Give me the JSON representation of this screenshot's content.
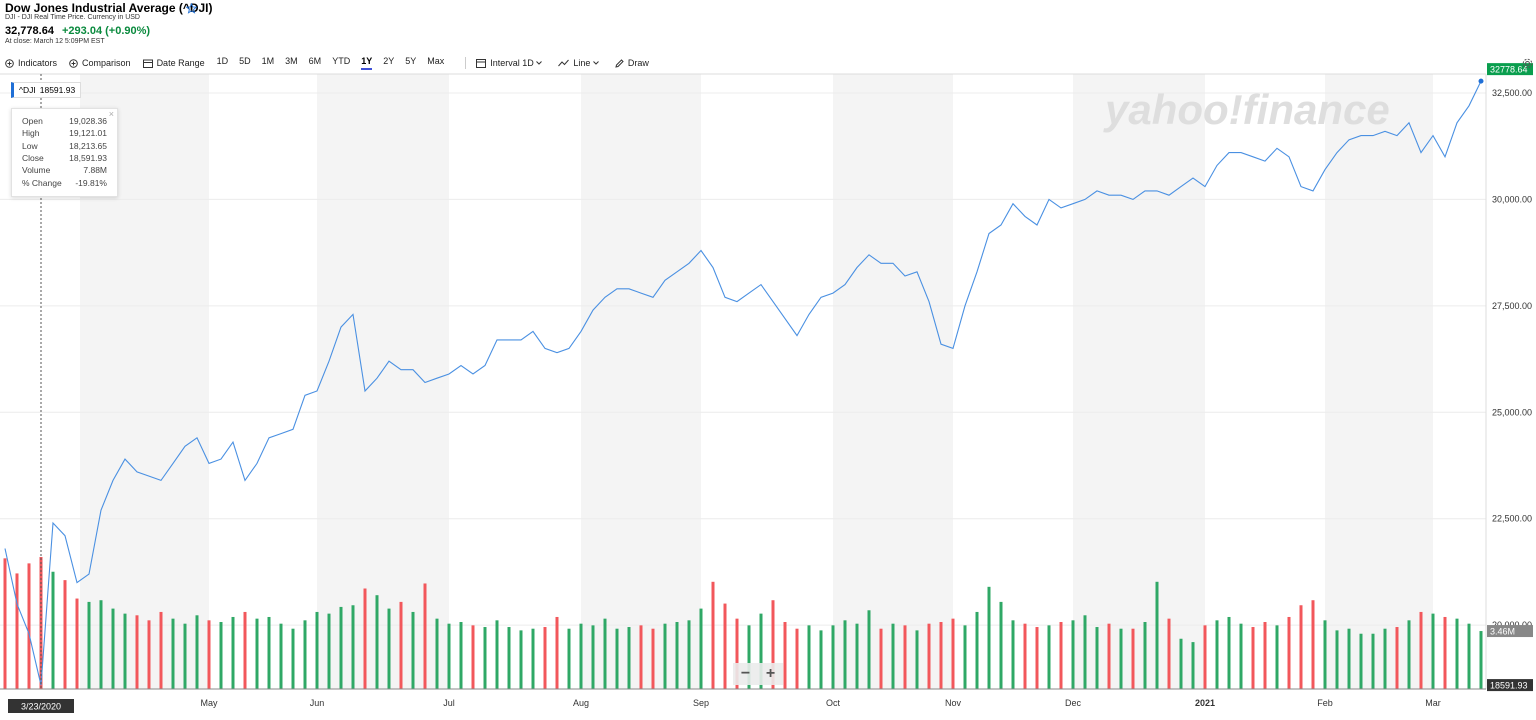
{
  "header": {
    "title": "Dow Jones Industrial Average (^DJI)",
    "subtitle": "DJI - DJI Real Time Price. Currency in USD",
    "price": "32,778.64",
    "change": "+293.04 (+0.90%)",
    "status": "At close: March 12 5:09PM EST"
  },
  "toolbar": {
    "indicators": "Indicators",
    "comparison": "Comparison",
    "date_range": "Date Range",
    "ranges": [
      "1D",
      "5D",
      "1M",
      "3M",
      "6M",
      "YTD",
      "1Y",
      "2Y",
      "5Y",
      "Max"
    ],
    "active_range": 6,
    "interval": "Interval",
    "interval_value": "1D",
    "line": "Line",
    "draw": "Draw"
  },
  "zoom": [
    "−",
    "+"
  ],
  "watermark": "yahoo!finance",
  "tooltip": {
    "rows": [
      [
        "Open",
        "19,028.36"
      ],
      [
        "High",
        "19,121.01"
      ],
      [
        "Low",
        "18,213.65"
      ],
      [
        "Close",
        "18,591.93"
      ],
      [
        "Volume",
        "7.88M"
      ],
      [
        "% Change",
        "-19.81%"
      ]
    ]
  },
  "crosshair": {
    "date": "3/23/2020",
    "price": 18591.93,
    "index": 3
  },
  "chart_data": {
    "type": "line",
    "categories": [
      null,
      null,
      null,
      null,
      null,
      null,
      null,
      null,
      null,
      null,
      null,
      null,
      null,
      null,
      null,
      null,
      null,
      "May",
      null,
      null,
      null,
      null,
      null,
      null,
      null,
      null,
      "Jun",
      null,
      null,
      null,
      null,
      null,
      null,
      null,
      null,
      null,
      null,
      "Jul",
      null,
      null,
      null,
      null,
      null,
      null,
      null,
      null,
      null,
      null,
      "Aug",
      null,
      null,
      null,
      null,
      null,
      null,
      null,
      null,
      null,
      "Sep",
      null,
      null,
      null,
      null,
      null,
      null,
      null,
      null,
      null,
      null,
      "Oct",
      null,
      null,
      null,
      null,
      null,
      null,
      null,
      null,
      null,
      "Nov",
      null,
      null,
      null,
      null,
      null,
      null,
      null,
      null,
      null,
      "Dec",
      null,
      null,
      null,
      null,
      null,
      null,
      null,
      null,
      null,
      null,
      "2021",
      null,
      null,
      null,
      null,
      null,
      null,
      null,
      null,
      null,
      "Feb",
      null,
      null,
      null,
      null,
      null,
      null,
      null,
      null,
      "Mar",
      null,
      null,
      null,
      null
    ],
    "series": [
      {
        "name": "^DJI",
        "color": "#4a90e2",
        "values": [
          21800,
          20500,
          19800,
          18591.93,
          22400,
          22100,
          21000,
          21200,
          22700,
          23400,
          23900,
          23600,
          23500,
          23400,
          23800,
          24200,
          24400,
          23800,
          23900,
          24300,
          23400,
          23800,
          24400,
          24500,
          24600,
          25400,
          25500,
          26200,
          27000,
          27300,
          25500,
          25800,
          26200,
          26000,
          26000,
          25700,
          25800,
          25900,
          26100,
          25900,
          26100,
          26700,
          26700,
          26700,
          26900,
          26500,
          26400,
          26500,
          26900,
          27400,
          27700,
          27900,
          27900,
          27800,
          27700,
          28100,
          28300,
          28500,
          28800,
          28400,
          27700,
          27600,
          27800,
          28000,
          27600,
          27200,
          26800,
          27300,
          27700,
          27800,
          28000,
          28400,
          28700,
          28500,
          28500,
          28200,
          28300,
          27600,
          26600,
          26500,
          27500,
          28300,
          29200,
          29400,
          29900,
          29600,
          29400,
          30000,
          29800,
          29900,
          30000,
          30200,
          30100,
          30100,
          30000,
          30200,
          30200,
          30100,
          30300,
          30500,
          30300,
          30800,
          31100,
          31100,
          31000,
          30900,
          31200,
          31000,
          30300,
          30200,
          30700,
          31100,
          31400,
          31500,
          31500,
          31600,
          31500,
          31800,
          31100,
          31500,
          31000,
          31800,
          32200,
          32778.64
        ]
      },
      {
        "name": "Volume",
        "axis": "y2",
        "up_color": "#2fa866",
        "down_color": "#f2575b",
        "values": [
          7.8,
          6.9,
          7.5,
          7.88,
          7.0,
          6.5,
          5.4,
          5.2,
          5.3,
          4.8,
          4.5,
          4.4,
          4.1,
          4.6,
          4.2,
          3.9,
          4.4,
          4.1,
          4.0,
          4.3,
          4.6,
          4.2,
          4.3,
          3.9,
          3.6,
          4.1,
          4.6,
          4.5,
          4.9,
          5.0,
          6.0,
          5.6,
          4.8,
          5.2,
          4.6,
          6.3,
          4.2,
          3.9,
          4.0,
          3.8,
          3.7,
          4.1,
          3.7,
          3.5,
          3.6,
          3.7,
          4.3,
          3.6,
          3.9,
          3.8,
          4.2,
          3.6,
          3.7,
          3.8,
          3.6,
          3.9,
          4.0,
          4.1,
          4.8,
          6.4,
          5.1,
          4.2,
          3.8,
          4.5,
          5.3,
          4.0,
          3.6,
          3.8,
          3.5,
          3.8,
          4.1,
          3.9,
          4.7,
          3.6,
          3.9,
          3.8,
          3.5,
          3.9,
          4.0,
          4.2,
          3.8,
          4.6,
          6.1,
          5.2,
          4.1,
          3.9,
          3.7,
          3.8,
          4.0,
          4.1,
          4.4,
          3.7,
          3.9,
          3.6,
          3.6,
          4.0,
          6.4,
          4.2,
          3.0,
          2.8,
          3.8,
          4.1,
          4.3,
          3.9,
          3.7,
          4.0,
          3.8,
          4.3,
          5.0,
          5.3,
          4.1,
          3.5,
          3.6,
          3.3,
          3.3,
          3.6,
          3.7,
          4.1,
          4.6,
          4.5,
          4.3,
          4.2,
          3.9,
          3.46
        ]
      }
    ],
    "volume_marker": "3.46M",
    "ylim": [
      18500,
      32946
    ],
    "yticks": [
      {
        "value": 20000,
        "label": "20,000.00"
      },
      {
        "value": 22500,
        "label": "22,500.00"
      },
      {
        "value": 25000,
        "label": "25,000.00"
      },
      {
        "value": 27500,
        "label": "27,500.00"
      },
      {
        "value": 30000,
        "label": "30,000.00"
      },
      {
        "value": 32500,
        "label": "32,500.00"
      }
    ],
    "y2lim": [
      0,
      8
    ],
    "grid": true,
    "last_color": "#0a9e4e"
  }
}
